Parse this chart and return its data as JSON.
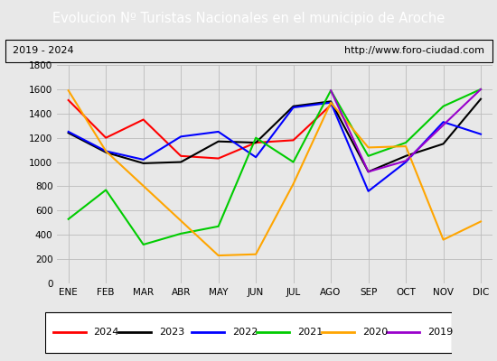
{
  "title": "Evolucion Nº Turistas Nacionales en el municipio de Aroche",
  "subtitle_left": "2019 - 2024",
  "subtitle_right": "http://www.foro-ciudad.com",
  "x_labels": [
    "ENE",
    "FEB",
    "MAR",
    "ABR",
    "MAY",
    "JUN",
    "JUL",
    "AGO",
    "SEP",
    "OCT",
    "NOV",
    "DIC"
  ],
  "ylim": [
    0,
    1800
  ],
  "yticks": [
    0,
    200,
    400,
    600,
    800,
    1000,
    1200,
    1400,
    1600,
    1800
  ],
  "series": {
    "2024": {
      "color": "#ff0000",
      "data": [
        1510,
        1200,
        1350,
        1050,
        1030,
        1160,
        1180,
        1470,
        null,
        null,
        null,
        null
      ]
    },
    "2023": {
      "color": "#000000",
      "data": [
        1240,
        1080,
        990,
        1000,
        1170,
        1160,
        1460,
        1500,
        920,
        1050,
        1150,
        1520
      ]
    },
    "2022": {
      "color": "#0000ff",
      "data": [
        1250,
        1090,
        1020,
        1210,
        1250,
        1040,
        1450,
        1490,
        760,
        1000,
        1330,
        1230
      ]
    },
    "2021": {
      "color": "#00cc00",
      "data": [
        530,
        770,
        320,
        410,
        470,
        1200,
        1000,
        1590,
        1050,
        1160,
        1460,
        1600
      ]
    },
    "2020": {
      "color": "#ffa500",
      "data": [
        1590,
        1090,
        null,
        null,
        230,
        240,
        820,
        1490,
        1120,
        1130,
        360,
        510
      ]
    },
    "2019": {
      "color": "#9900cc",
      "data": [
        null,
        null,
        null,
        null,
        null,
        null,
        null,
        1590,
        920,
        1010,
        null,
        1600
      ]
    }
  },
  "title_bg": "#4472c4",
  "title_color": "#ffffff",
  "title_fontsize": 10.5,
  "bg_color": "#e8e8e8",
  "plot_bg": "#e8e8e8",
  "grid_color": "#bbbbbb",
  "legend_order": [
    "2024",
    "2023",
    "2022",
    "2021",
    "2020",
    "2019"
  ]
}
